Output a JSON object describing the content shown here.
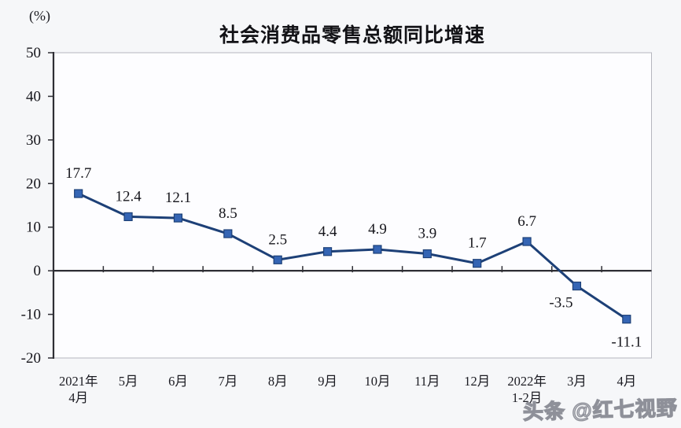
{
  "chart_data": {
    "type": "line",
    "title": "社会消费品零售总额同比增速",
    "unit_label": "(%)",
    "categories": [
      "2021年\n4月",
      "5月",
      "6月",
      "7月",
      "8月",
      "9月",
      "10月",
      "11月",
      "12月",
      "2022年\n1-2月",
      "3月",
      "4月"
    ],
    "values": [
      17.7,
      12.4,
      12.1,
      8.5,
      2.5,
      4.4,
      4.9,
      3.9,
      1.7,
      6.7,
      -3.5,
      -11.1
    ],
    "label_positions": [
      "above",
      "above",
      "above",
      "above",
      "above",
      "above",
      "above",
      "above",
      "above",
      "above",
      "below",
      "below"
    ],
    "label_offsets": {
      "10": [
        -20,
        0
      ],
      "11": [
        0,
        8
      ]
    },
    "ylim": [
      -20,
      50
    ],
    "ytick_step": 10,
    "ytick_labels": [
      "50",
      "40",
      "30",
      "20",
      "10",
      "0",
      "-10",
      "-20"
    ],
    "grid": false,
    "legend_position": "none",
    "line_color": "#1d4077",
    "marker_color": "#3565b4",
    "axis_color": "#2e2e34",
    "border_color": "#b5b6be",
    "plot_fill": "#fdfdff",
    "label_color": "#15151b"
  },
  "watermark": {
    "text": "头条 @红七视野"
  }
}
